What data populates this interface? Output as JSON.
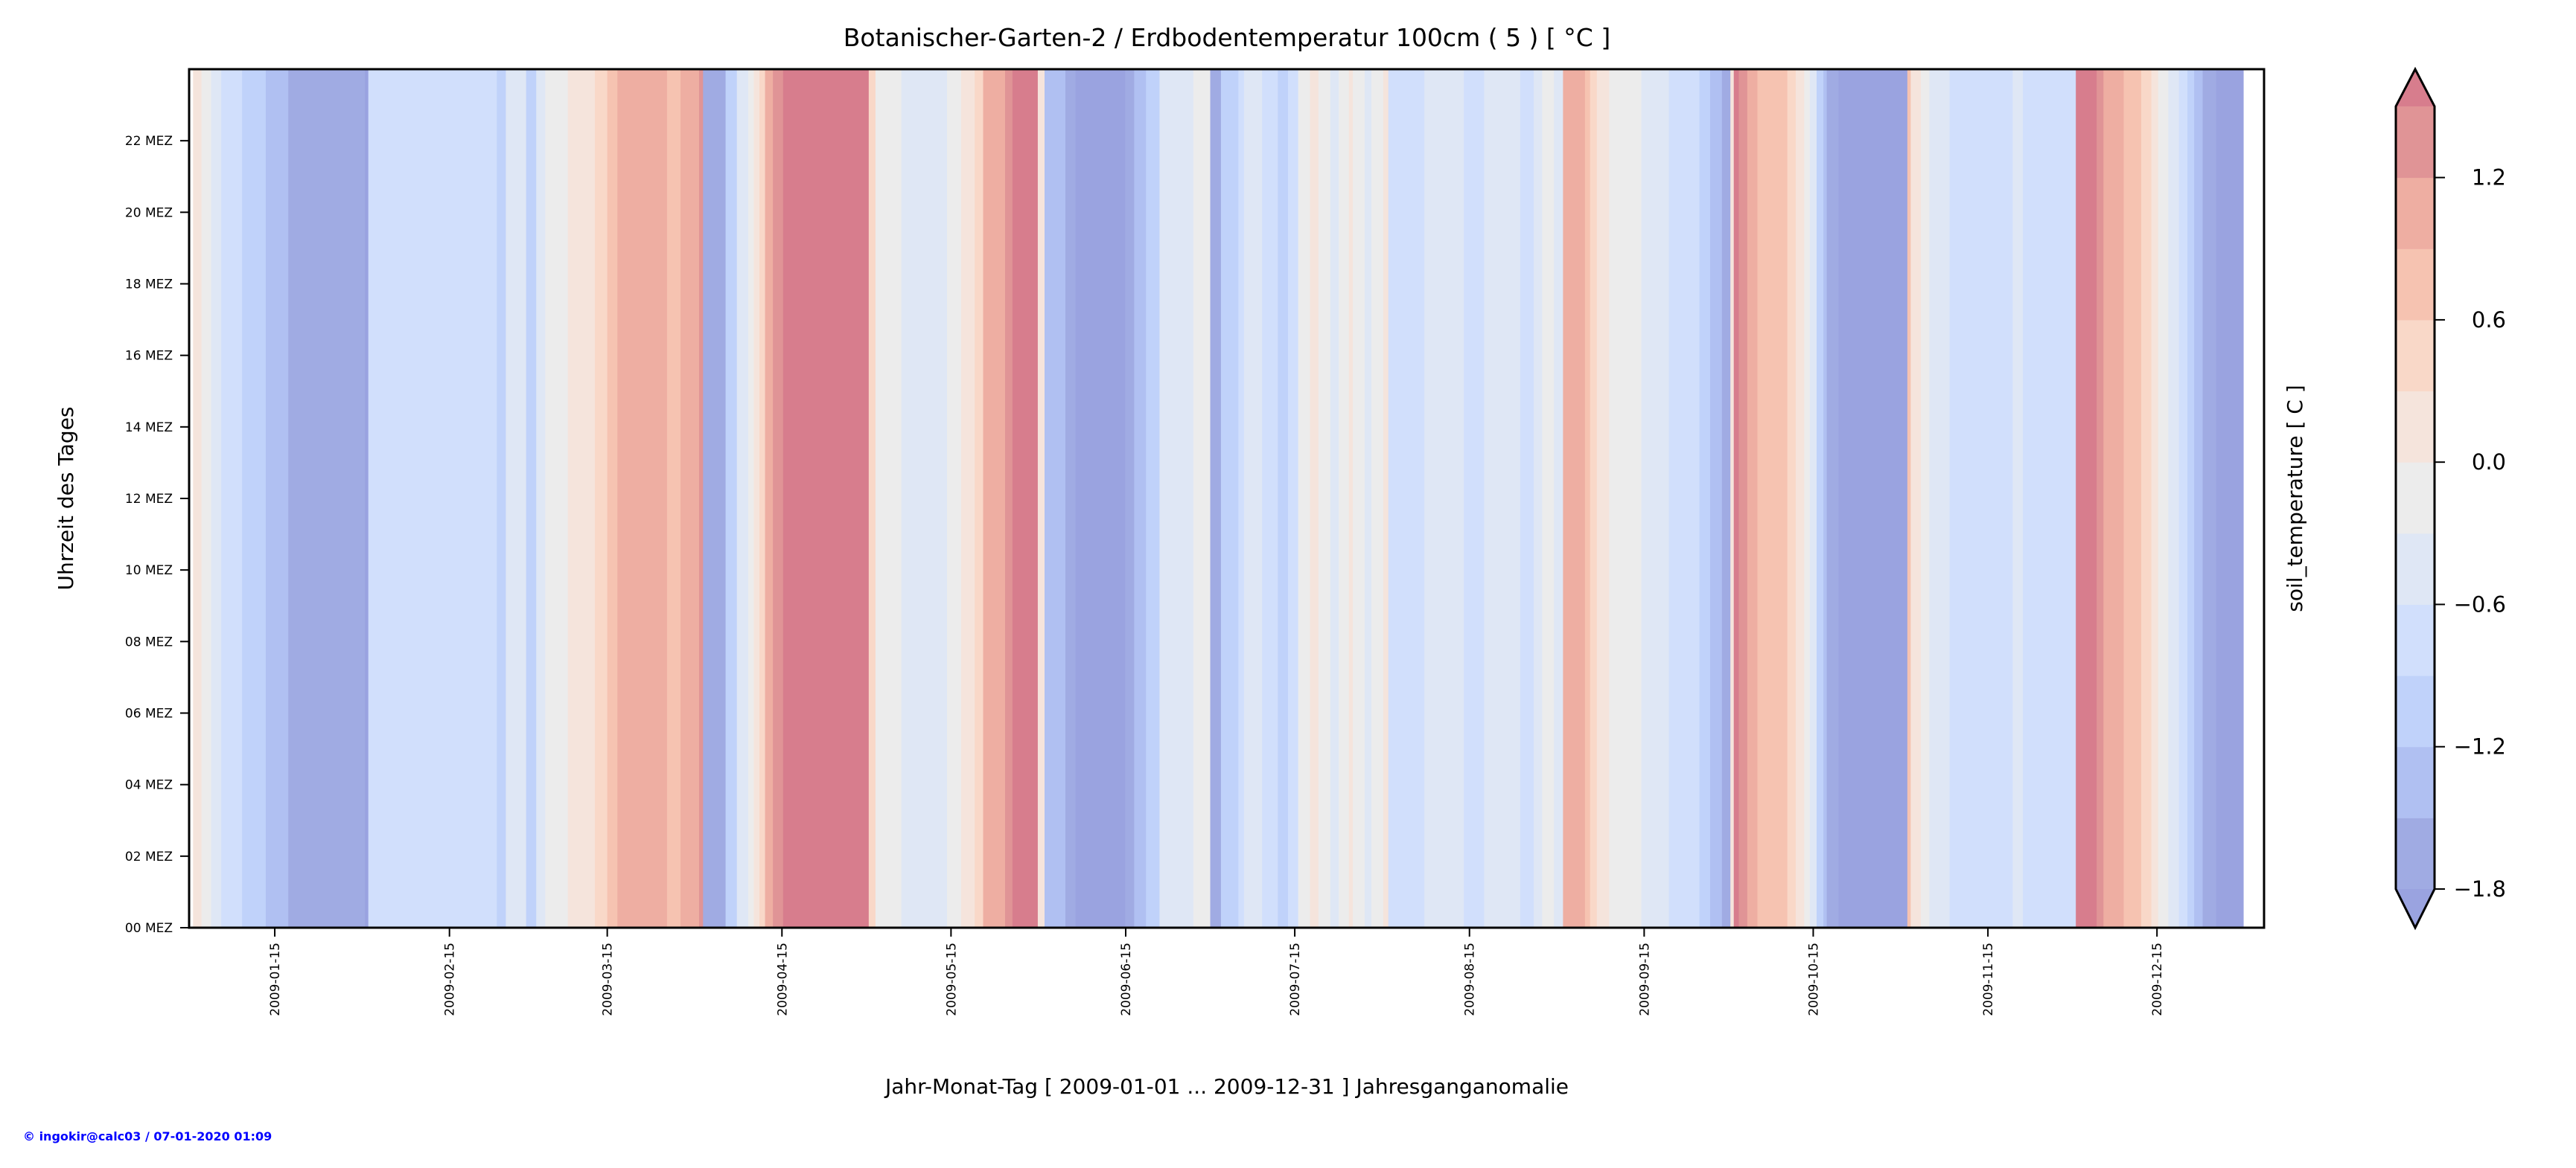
{
  "chart_data": {
    "type": "heatmap",
    "title": "Botanischer-Garten-2 / Erdbodentemperatur 100cm ( 5 ) [ °C ]",
    "xlabel": "Jahr-Monat-Tag [ 2009-01-01 ... 2009-12-31 ] Jahresganganomalie",
    "ylabel": "Uhrzeit des Tages",
    "colorbar_label": "soil_temperature [ C ]",
    "x_units": "day of year 2009 (0 = 2009-01-01)",
    "xlim": [
      -1.2,
      367
    ],
    "ylim": [
      0,
      24
    ],
    "x_ticks": [
      {
        "day": 14,
        "label": "2009-01-15"
      },
      {
        "day": 45,
        "label": "2009-02-15"
      },
      {
        "day": 73,
        "label": "2009-03-15"
      },
      {
        "day": 104,
        "label": "2009-04-15"
      },
      {
        "day": 134,
        "label": "2009-05-15"
      },
      {
        "day": 165,
        "label": "2009-06-15"
      },
      {
        "day": 195,
        "label": "2009-07-15"
      },
      {
        "day": 226,
        "label": "2009-08-15"
      },
      {
        "day": 257,
        "label": "2009-09-15"
      },
      {
        "day": 287,
        "label": "2009-10-15"
      },
      {
        "day": 318,
        "label": "2009-11-15"
      },
      {
        "day": 348,
        "label": "2009-12-15"
      }
    ],
    "y_ticks": [
      {
        "hour": 0,
        "label": "00 MEZ"
      },
      {
        "hour": 2,
        "label": "02 MEZ"
      },
      {
        "hour": 4,
        "label": "04 MEZ"
      },
      {
        "hour": 6,
        "label": "06 MEZ"
      },
      {
        "hour": 8,
        "label": "08 MEZ"
      },
      {
        "hour": 10,
        "label": "10 MEZ"
      },
      {
        "hour": 12,
        "label": "12 MEZ"
      },
      {
        "hour": 14,
        "label": "14 MEZ"
      },
      {
        "hour": 16,
        "label": "16 MEZ"
      },
      {
        "hour": 18,
        "label": "18 MEZ"
      },
      {
        "hour": 20,
        "label": "20 MEZ"
      },
      {
        "hour": 22,
        "label": "22 MEZ"
      }
    ],
    "levels": [
      -1.8,
      -1.5,
      -1.2,
      -0.9,
      -0.6,
      -0.3,
      0.0,
      0.3,
      0.6,
      0.9,
      1.2,
      1.5
    ],
    "colors": [
      "#9aa3e0",
      "#a0abe3",
      "#b0c0f2",
      "#c0d2fa",
      "#d1dffc",
      "#dfe7f5",
      "#ececec",
      "#f5e4dc",
      "#f9d8c8",
      "#f6c3b1",
      "#eeaea2",
      "#e09496",
      "#d77d8d"
    ],
    "extend": "both",
    "colorbar_ticks": [
      {
        "value": 1.2,
        "label": "1.2"
      },
      {
        "value": 0.6,
        "label": "0.6"
      },
      {
        "value": 0.0,
        "label": "0.0"
      },
      {
        "value": -0.6,
        "label": "−0.6"
      },
      {
        "value": -1.2,
        "label": "−1.2"
      },
      {
        "value": -1.8,
        "label": "−1.8"
      }
    ],
    "segments_note": "[start_day, end_day, anomaly °C] roughly constant over all hours",
    "segments": [
      [
        -0.5,
        1,
        0.15
      ],
      [
        1,
        2.7,
        -0.15
      ],
      [
        2.7,
        4.5,
        -0.45
      ],
      [
        4.5,
        8.2,
        -0.75
      ],
      [
        8.2,
        12.4,
        -1.05
      ],
      [
        12.4,
        16.4,
        -1.35
      ],
      [
        16.4,
        30,
        -1.65
      ],
      [
        30,
        30.6,
        -1.95
      ],
      [
        30.6,
        53.4,
        -0.75
      ],
      [
        53.4,
        55,
        -1.05
      ],
      [
        55,
        58.6,
        -0.45
      ],
      [
        58.6,
        60.4,
        -1.05
      ],
      [
        60.4,
        62,
        -0.45
      ],
      [
        62,
        66,
        -0.15
      ],
      [
        66,
        70.8,
        0.15
      ],
      [
        70.8,
        73,
        0.45
      ],
      [
        73,
        74.8,
        0.75
      ],
      [
        74.8,
        83.6,
        1.05
      ],
      [
        83.6,
        86,
        0.75
      ],
      [
        86,
        89.3,
        1.05
      ],
      [
        89.3,
        90,
        1.35
      ],
      [
        90,
        94,
        -1.65
      ],
      [
        94,
        96,
        -1.05
      ],
      [
        96,
        98,
        -0.45
      ],
      [
        98,
        99,
        -0.15
      ],
      [
        99,
        100,
        0.15
      ],
      [
        100,
        101,
        0.45
      ],
      [
        101,
        102.4,
        1.05
      ],
      [
        102.4,
        104.2,
        1.35
      ],
      [
        104.2,
        119.4,
        1.65
      ],
      [
        119.4,
        120.6,
        0.45
      ],
      [
        120.6,
        125.2,
        -0.15
      ],
      [
        125.2,
        133.3,
        -0.45
      ],
      [
        133.3,
        135.8,
        -0.15
      ],
      [
        135.8,
        138.2,
        0.15
      ],
      [
        138.2,
        139.7,
        0.45
      ],
      [
        139.7,
        143.6,
        1.05
      ],
      [
        143.6,
        144.9,
        1.35
      ],
      [
        144.9,
        149.4,
        1.65
      ],
      [
        149.4,
        150.6,
        0.15
      ],
      [
        150.6,
        154.3,
        -1.35
      ],
      [
        154.3,
        156.1,
        -1.65
      ],
      [
        156.1,
        164.9,
        -1.95
      ],
      [
        164.9,
        166.5,
        -1.65
      ],
      [
        166.5,
        168.6,
        -1.35
      ],
      [
        168.6,
        171,
        -1.05
      ],
      [
        171,
        177,
        -0.45
      ],
      [
        177,
        180,
        -0.15
      ],
      [
        180,
        181.9,
        -1.65
      ],
      [
        181.9,
        185,
        -1.05
      ],
      [
        185,
        186,
        -0.75
      ],
      [
        186,
        189.2,
        -0.45
      ],
      [
        189.2,
        192,
        -0.75
      ],
      [
        192,
        193.8,
        -1.05
      ],
      [
        193.8,
        195.6,
        -0.75
      ],
      [
        195.6,
        197.7,
        -0.15
      ],
      [
        197.7,
        199.2,
        0.15
      ],
      [
        199.2,
        201.3,
        -0.15
      ],
      [
        201.3,
        202.8,
        -0.45
      ],
      [
        202.8,
        204.6,
        -0.15
      ],
      [
        204.6,
        205.3,
        0.15
      ],
      [
        205.3,
        207.4,
        -0.15
      ],
      [
        207.4,
        208.6,
        -0.45
      ],
      [
        208.6,
        210.7,
        -0.15
      ],
      [
        210.7,
        211.6,
        0.15
      ],
      [
        211.6,
        218,
        -0.75
      ],
      [
        218,
        225,
        -0.45
      ],
      [
        225,
        228.6,
        -0.75
      ],
      [
        228.6,
        235,
        -0.45
      ],
      [
        235,
        237.4,
        -0.75
      ],
      [
        237.4,
        238.9,
        -0.45
      ],
      [
        238.9,
        241,
        -0.15
      ],
      [
        241,
        242.6,
        -0.45
      ],
      [
        242.6,
        246.5,
        1.05
      ],
      [
        246.5,
        247.4,
        0.75
      ],
      [
        247.4,
        248.6,
        0.45
      ],
      [
        248.6,
        250.8,
        0.15
      ],
      [
        250.8,
        256.5,
        -0.15
      ],
      [
        256.5,
        261.4,
        -0.45
      ],
      [
        261.4,
        266.8,
        -0.75
      ],
      [
        266.8,
        268.7,
        -1.05
      ],
      [
        268.7,
        270.8,
        -1.35
      ],
      [
        270.8,
        272.3,
        -1.65
      ],
      [
        272.3,
        272.9,
        0.15
      ],
      [
        272.9,
        273.8,
        1.65
      ],
      [
        273.8,
        275.3,
        1.35
      ],
      [
        275.3,
        277.1,
        1.05
      ],
      [
        277.1,
        282.4,
        0.75
      ],
      [
        282.4,
        283.9,
        0.45
      ],
      [
        283.9,
        285.4,
        0.15
      ],
      [
        285.4,
        286.4,
        -0.15
      ],
      [
        286.4,
        287.6,
        -0.45
      ],
      [
        287.6,
        288.8,
        -1.05
      ],
      [
        288.8,
        289.4,
        -1.35
      ],
      [
        289.4,
        291.5,
        -1.65
      ],
      [
        291.5,
        303.7,
        -1.95
      ],
      [
        303.7,
        304.3,
        0.75
      ],
      [
        304.3,
        306.1,
        0.15
      ],
      [
        306.1,
        307.6,
        -0.15
      ],
      [
        307.6,
        311.2,
        -0.45
      ],
      [
        311.2,
        322.4,
        -0.75
      ],
      [
        322.4,
        324.2,
        -0.45
      ],
      [
        324.2,
        333.6,
        -0.75
      ],
      [
        333.6,
        337.3,
        1.65
      ],
      [
        337.3,
        338.5,
        1.35
      ],
      [
        338.5,
        342.1,
        1.05
      ],
      [
        342.1,
        345.2,
        0.75
      ],
      [
        345.2,
        347,
        0.45
      ],
      [
        347,
        348.2,
        0.15
      ],
      [
        348.2,
        350,
        -0.15
      ],
      [
        350,
        351.9,
        -0.45
      ],
      [
        351.9,
        353.4,
        -0.75
      ],
      [
        353.4,
        354.6,
        -1.05
      ],
      [
        354.6,
        356.1,
        -1.35
      ],
      [
        356.1,
        358.5,
        -1.65
      ],
      [
        358.5,
        363.3,
        -1.95
      ]
    ]
  },
  "footer": "© ingokir@calc03 / 07-01-2020 01:09"
}
